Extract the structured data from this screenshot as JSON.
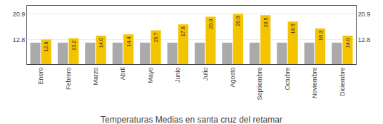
{
  "chart_data": {
    "type": "bar",
    "title": "Temperaturas Medias en santa cruz del retamar",
    "categories": [
      "Enero",
      "Febrero",
      "Marzo",
      "Abril",
      "Mayo",
      "Junio",
      "Julio",
      "Agosto",
      "Septiembre",
      "Octubre",
      "Noviembre",
      "Diciembre"
    ],
    "series": [
      {
        "color": "#AAAAAA",
        "values": [
          11.8,
          11.8,
          11.8,
          11.8,
          11.8,
          11.8,
          11.8,
          11.8,
          11.8,
          11.8,
          11.8,
          11.8
        ]
      },
      {
        "color": "#F5C400",
        "values": [
          12.8,
          13.2,
          14.0,
          14.4,
          15.7,
          17.6,
          20.0,
          20.9,
          20.5,
          18.5,
          16.3,
          14.0
        ],
        "value_labels": [
          "12.8",
          "13.2",
          "14.0",
          "14.4",
          "15.7",
          "17.6",
          "20.0",
          "20.9",
          "20.5",
          "18.5",
          "16.3",
          "14.0"
        ],
        "data_labels": true
      }
    ],
    "ylim": [
      5.0,
      23.5
    ],
    "yticks": [
      12.8,
      20.9
    ],
    "y2lim": [
      5.0,
      23.5
    ],
    "y2ticks": [
      12.8,
      20.9
    ],
    "grid": true
  }
}
